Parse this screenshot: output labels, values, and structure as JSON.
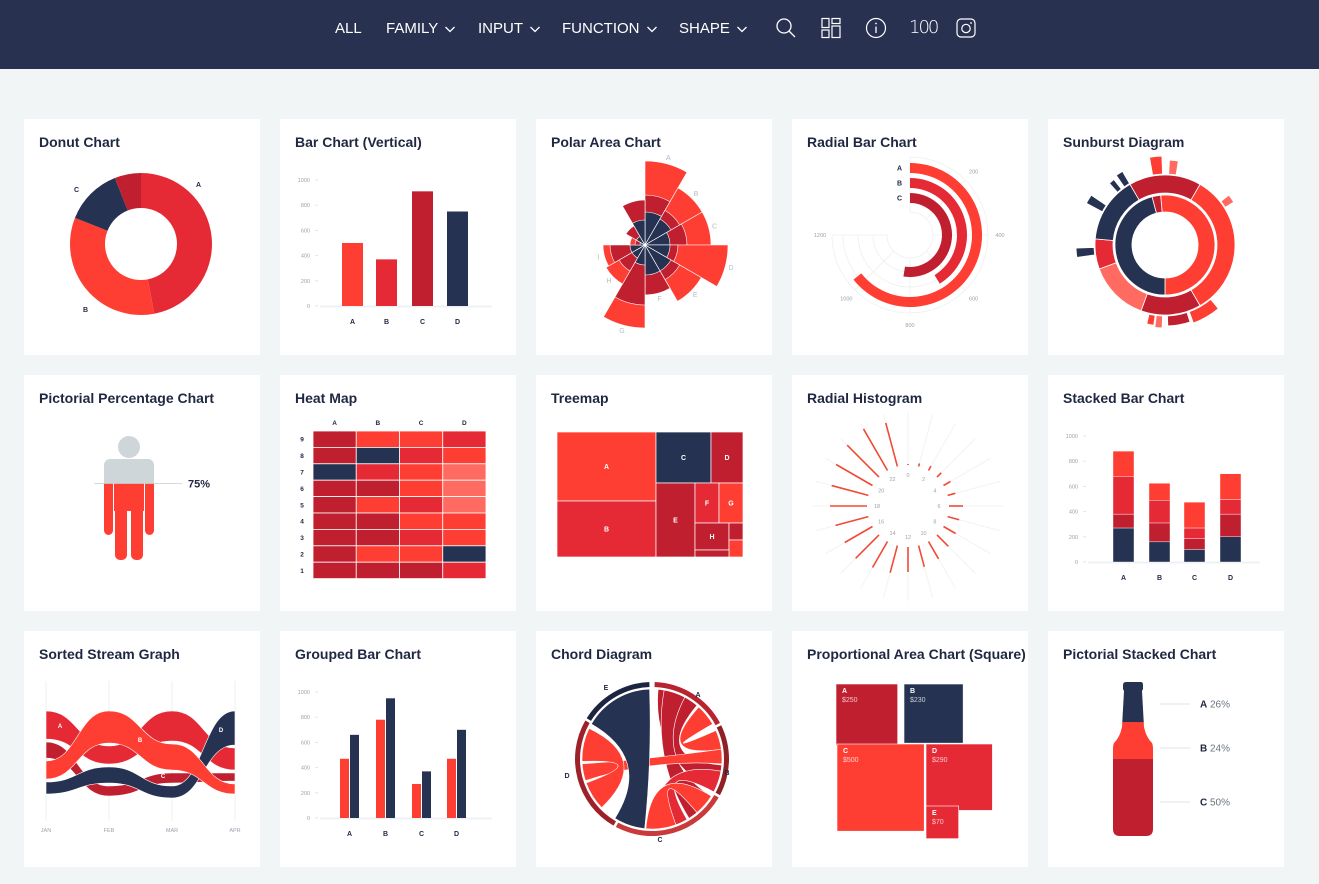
{
  "nav": {
    "items": [
      {
        "label": "ALL"
      },
      {
        "label": "FAMILY"
      },
      {
        "label": "INPUT"
      },
      {
        "label": "FUNCTION"
      },
      {
        "label": "SHAPE"
      }
    ],
    "hundred_label": "100",
    "icons": [
      "search-icon",
      "dashboard-icon",
      "info-icon",
      "instagram-icon"
    ]
  },
  "colors": {
    "navy": "#263252",
    "dark": "#c01f2f",
    "red": "#e52a36",
    "bright": "#ff3e33",
    "light": "#ff6b61",
    "gray": "#cfd6da",
    "header": "#283250"
  },
  "cards": [
    {
      "title": "Donut Chart"
    },
    {
      "title": "Bar Chart (Vertical)"
    },
    {
      "title": "Polar Area Chart"
    },
    {
      "title": "Radial Bar Chart"
    },
    {
      "title": "Sunburst Diagram"
    },
    {
      "title": "Pictorial Percentage Chart"
    },
    {
      "title": "Heat Map"
    },
    {
      "title": "Treemap"
    },
    {
      "title": "Radial Histogram"
    },
    {
      "title": "Stacked Bar Chart"
    },
    {
      "title": "Sorted Stream Graph"
    },
    {
      "title": "Grouped Bar Chart"
    },
    {
      "title": "Chord Diagram"
    },
    {
      "title": "Proportional Area Chart (Square)"
    },
    {
      "title": "Pictorial Stacked Chart"
    }
  ],
  "chart_data": [
    {
      "type": "pie",
      "labels": [
        "A",
        "B",
        "C",
        ""
      ],
      "values": [
        47,
        34,
        13,
        6
      ],
      "colors": [
        "red",
        "bright",
        "navy",
        "dark"
      ]
    },
    {
      "type": "bar",
      "categories": [
        "A",
        "B",
        "C",
        "D"
      ],
      "values": [
        500,
        370,
        910,
        750
      ],
      "yticks": [
        "0",
        "200",
        "400",
        "600",
        "800",
        "1000"
      ],
      "ylim": [
        0,
        1000
      ],
      "colors": [
        "bright",
        "red",
        "dark",
        "navy"
      ]
    },
    {
      "type": "polar-area",
      "sectors": [
        {
          "label": "A",
          "inner": 33,
          "mid": 50,
          "outer": 84
        },
        {
          "label": "B",
          "inner": 30,
          "mid": 40,
          "outer": 66
        },
        {
          "label": "C",
          "inner": 25,
          "mid": 42,
          "outer": 66
        },
        {
          "label": "D",
          "inner": 25,
          "mid": 33,
          "outer": 83
        },
        {
          "label": "E",
          "inner": 30,
          "mid": 40,
          "outer": 65
        },
        {
          "label": "F",
          "inner": 30,
          "mid": 50,
          "outer": 50
        },
        {
          "label": "G",
          "inner": 20,
          "mid": 60,
          "outer": 83
        },
        {
          "label": "H",
          "inner": 15,
          "mid": 30,
          "outer": 45
        },
        {
          "label": "I",
          "inner": 15,
          "mid": 35,
          "outer": 42
        },
        {
          "label": "",
          "inner": 5,
          "mid": 10,
          "outer": 15
        },
        {
          "label": "",
          "inner": 10,
          "mid": 22,
          "outer": 22
        },
        {
          "label": "",
          "inner": 25,
          "mid": 45,
          "outer": 45
        }
      ]
    },
    {
      "type": "radial-bar",
      "categories": [
        "A",
        "B",
        "C"
      ],
      "values": [
        1030,
        660,
        840
      ],
      "max": 1200,
      "ticks": [
        "200",
        "400",
        "600",
        "800",
        "1000",
        "1200"
      ],
      "colors": [
        "bright",
        "red",
        "dark"
      ]
    },
    {
      "type": "sunburst",
      "segments": [
        {
          "ring": 1,
          "from": 355,
          "to": 540,
          "color": "bright"
        },
        {
          "ring": 1,
          "from": 180,
          "to": 345,
          "color": "navy"
        },
        {
          "ring": 1,
          "from": 345,
          "to": 355,
          "color": "dark"
        },
        {
          "ring": 2,
          "from": 330,
          "to": 390,
          "color": "dark"
        },
        {
          "ring": 2,
          "from": 30,
          "to": 150,
          "color": "bright"
        },
        {
          "ring": 2,
          "from": 150,
          "to": 200,
          "color": "dark"
        },
        {
          "ring": 2,
          "from": 200,
          "to": 250,
          "color": "light"
        },
        {
          "ring": 2,
          "from": 250,
          "to": 275,
          "color": "red"
        },
        {
          "ring": 2,
          "from": 275,
          "to": 330,
          "color": "navy"
        },
        {
          "ring": 3,
          "from": 350,
          "to": 358,
          "depth": 18,
          "color": "bright"
        },
        {
          "ring": 3,
          "from": 3,
          "to": 9,
          "depth": 14,
          "color": "light"
        },
        {
          "ring": 3,
          "from": 52,
          "to": 58,
          "depth": 10,
          "color": "light"
        },
        {
          "ring": 3,
          "from": 140,
          "to": 160,
          "depth": 12,
          "color": "bright"
        },
        {
          "ring": 3,
          "from": 162,
          "to": 178,
          "depth": 10,
          "color": "dark"
        },
        {
          "ring": 3,
          "from": 182,
          "to": 187,
          "depth": 12,
          "color": "light"
        },
        {
          "ring": 3,
          "from": 188,
          "to": 193,
          "depth": 10,
          "color": "bright"
        },
        {
          "ring": 3,
          "from": 262,
          "to": 268,
          "depth": 18,
          "color": "navy"
        },
        {
          "ring": 3,
          "from": 298,
          "to": 304,
          "depth": 18,
          "color": "navy"
        },
        {
          "ring": 3,
          "from": 318,
          "to": 322,
          "depth": 12,
          "color": "navy"
        },
        {
          "ring": 3,
          "from": 325,
          "to": 330,
          "depth": 14,
          "color": "navy"
        }
      ]
    },
    {
      "type": "pictorial-percentage",
      "value": 75,
      "label": "75%"
    },
    {
      "type": "heatmap",
      "columns": [
        "A",
        "B",
        "C",
        "D"
      ],
      "rows": [
        "9",
        "8",
        "7",
        "6",
        "5",
        "4",
        "3",
        "2",
        "1"
      ],
      "levels": [
        "light",
        "bright",
        "red",
        "dark",
        "navy"
      ],
      "values": [
        [
          4,
          2,
          2,
          3
        ],
        [
          4,
          5,
          3,
          2
        ],
        [
          5,
          3,
          2,
          1
        ],
        [
          4,
          4,
          2,
          1
        ],
        [
          4,
          2,
          3,
          1
        ],
        [
          4,
          4,
          2,
          2
        ],
        [
          4,
          4,
          3,
          2
        ],
        [
          4,
          2,
          2,
          5
        ],
        [
          4,
          4,
          4,
          3
        ]
      ]
    },
    {
      "type": "treemap",
      "items": [
        {
          "label": "A",
          "value": 68,
          "color": "bright"
        },
        {
          "label": "B",
          "value": 55,
          "color": "red"
        },
        {
          "label": "C",
          "value": 28,
          "color": "navy"
        },
        {
          "label": "D",
          "value": 16,
          "color": "dark"
        },
        {
          "label": "E",
          "value": 28,
          "color": "dark"
        },
        {
          "label": "F",
          "value": 9,
          "color": "red"
        },
        {
          "label": "G",
          "value": 9,
          "color": "bright"
        },
        {
          "label": "H",
          "value": 9,
          "color": "dark"
        },
        {
          "label": "",
          "value": 2,
          "color": "dark"
        },
        {
          "label": "",
          "value": 2,
          "color": "bright"
        },
        {
          "label": "",
          "value": 2,
          "color": "dark"
        }
      ]
    },
    {
      "type": "radial-histogram",
      "hours": [
        0,
        1,
        2,
        3,
        4,
        5,
        6,
        7,
        8,
        9,
        10,
        11,
        12,
        13,
        14,
        15,
        16,
        17,
        18,
        19,
        20,
        21,
        22,
        23
      ],
      "values": [
        1,
        3,
        5,
        6,
        8,
        8,
        14,
        12,
        14,
        16,
        20,
        22,
        25,
        28,
        30,
        33,
        32,
        34,
        37,
        38,
        42,
        45,
        48,
        45
      ],
      "labels": [
        "0",
        "2",
        "4",
        "6",
        "8",
        "10",
        "12",
        "14",
        "16",
        "18",
        "20",
        "22"
      ]
    },
    {
      "type": "bar-stacked",
      "categories": [
        "A",
        "B",
        "C",
        "D"
      ],
      "yticks": [
        "0",
        "200",
        "400",
        "600",
        "800",
        "1000"
      ],
      "ylim": [
        0,
        1000
      ],
      "series": [
        {
          "color": "navy",
          "values": [
            270,
            160,
            100,
            200
          ]
        },
        {
          "color": "dark",
          "values": [
            110,
            150,
            85,
            180
          ]
        },
        {
          "color": "red",
          "values": [
            300,
            180,
            85,
            115
          ]
        },
        {
          "color": "bright",
          "values": [
            200,
            135,
            205,
            205
          ]
        }
      ]
    },
    {
      "type": "stream",
      "x": [
        "JAN",
        "FEB",
        "MAR",
        "APR"
      ],
      "series": [
        {
          "name": "A",
          "color": "red",
          "values": [
            28,
            18,
            30,
            22
          ]
        },
        {
          "name": "B",
          "color": "bright",
          "values": [
            18,
            32,
            26,
            10
          ]
        },
        {
          "name": "C",
          "color": "dark",
          "values": [
            16,
            10,
            10,
            8
          ]
        },
        {
          "name": "D",
          "color": "navy",
          "values": [
            12,
            16,
            12,
            34
          ]
        }
      ],
      "order": [
        [
          "A",
          "C",
          "B",
          "D"
        ],
        [
          "B",
          "A",
          "D",
          "C"
        ],
        [
          "A",
          "B",
          "C",
          "D"
        ],
        [
          "D",
          "A",
          "C",
          "B"
        ]
      ]
    },
    {
      "type": "bar-grouped",
      "categories": [
        "A",
        "B",
        "C",
        "D"
      ],
      "yticks": [
        "0",
        "200",
        "400",
        "600",
        "800",
        "1000"
      ],
      "ylim": [
        0,
        1000
      ],
      "series": [
        {
          "color": "bright",
          "values": [
            470,
            780,
            270,
            470
          ]
        },
        {
          "color": "navy",
          "values": [
            660,
            950,
            370,
            700
          ]
        }
      ]
    },
    {
      "type": "chord",
      "groups": [
        {
          "label": "A",
          "from": 2,
          "to": 62,
          "color": "#b72430"
        },
        {
          "label": "B",
          "from": 64,
          "to": 118,
          "color": "#8f2126"
        },
        {
          "label": "C",
          "from": 120,
          "to": 208,
          "color": "#c93b3b"
        },
        {
          "label": "D",
          "from": 210,
          "to": 300,
          "color": "#9c2128"
        },
        {
          "label": "E",
          "from": 302,
          "to": 358,
          "color": "#1b2440"
        }
      ],
      "ribbons": [
        {
          "s": [
            5,
            40
          ],
          "t": [
            95,
            117
          ],
          "color": "dark"
        },
        {
          "s": [
            10,
            28
          ],
          "t": [
            122,
            148
          ],
          "color": "dark"
        },
        {
          "s": [
            150,
            178
          ],
          "t": [
            100,
            118
          ],
          "color": "red"
        },
        {
          "s": [
            42,
            60
          ],
          "t": [
            66,
            82
          ],
          "color": "bright"
        },
        {
          "s": [
            82,
            94
          ],
          "t": [
            252,
            266
          ],
          "color": "bright"
        },
        {
          "s": [
            160,
            185
          ],
          "t": [
            122,
            140
          ],
          "color": "bright"
        },
        {
          "s": [
            226,
            250
          ],
          "t": [
            268,
            296
          ],
          "color": "bright"
        },
        {
          "s": [
            300,
            358
          ],
          "t": [
            186,
            212
          ],
          "color": "navy"
        }
      ]
    },
    {
      "type": "proportional-area",
      "items": [
        {
          "label": "A",
          "amount": 250,
          "value": "$250",
          "color": "dark"
        },
        {
          "label": "B",
          "amount": 230,
          "value": "$230",
          "color": "navy"
        },
        {
          "label": "C",
          "amount": 500,
          "value": "$500",
          "color": "bright"
        },
        {
          "label": "D",
          "amount": 290,
          "value": "$290",
          "color": "red"
        },
        {
          "label": "E",
          "amount": 70,
          "value": "$70",
          "color": "red"
        }
      ]
    },
    {
      "type": "pictorial-stacked",
      "items": [
        {
          "label": "A",
          "pct": 26,
          "text": "26%",
          "color": "navy"
        },
        {
          "label": "B",
          "pct": 24,
          "text": "24%",
          "color": "bright"
        },
        {
          "label": "C",
          "pct": 50,
          "text": "50%",
          "color": "dark"
        }
      ]
    }
  ]
}
